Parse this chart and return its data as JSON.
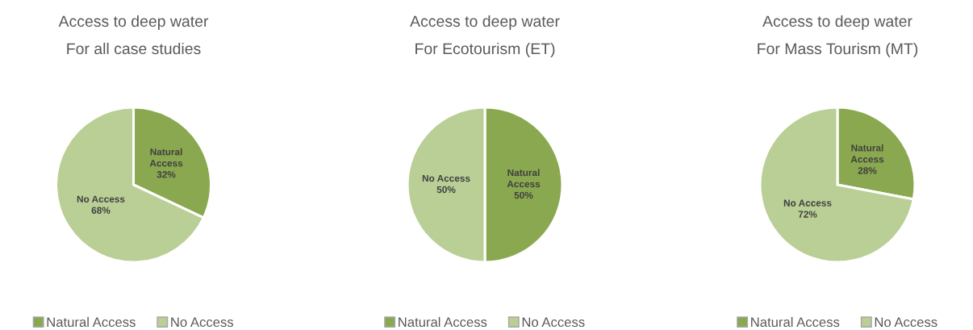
{
  "chart_data": [
    {
      "type": "pie",
      "title": "Access to deep water",
      "subtitle": "For all case studies",
      "categories": [
        "Natural Access",
        "No Access"
      ],
      "values": [
        32,
        68
      ],
      "colors": [
        "#8aa84f",
        "#b9cf96"
      ],
      "value_labels": [
        "Natural\nAccess\n32%",
        "No Access\n68%"
      ],
      "legend": "bottom"
    },
    {
      "type": "pie",
      "title": "Access to deep water",
      "subtitle": "For Ecotourism (ET)",
      "categories": [
        "Natural Access",
        "No Access"
      ],
      "values": [
        50,
        50
      ],
      "colors": [
        "#8aa84f",
        "#b9cf96"
      ],
      "value_labels": [
        "Natural\nAccess\n50%",
        "No Access\n50%"
      ],
      "legend": "bottom"
    },
    {
      "type": "pie",
      "title": "Access to deep water",
      "subtitle": "For Mass Tourism (MT)",
      "categories": [
        "Natural Access",
        "No Access"
      ],
      "values": [
        28,
        72
      ],
      "colors": [
        "#8aa84f",
        "#b9cf96"
      ],
      "value_labels": [
        "Natural\nAccess\n28%",
        "No Access\n72%"
      ],
      "legend": "bottom"
    }
  ]
}
